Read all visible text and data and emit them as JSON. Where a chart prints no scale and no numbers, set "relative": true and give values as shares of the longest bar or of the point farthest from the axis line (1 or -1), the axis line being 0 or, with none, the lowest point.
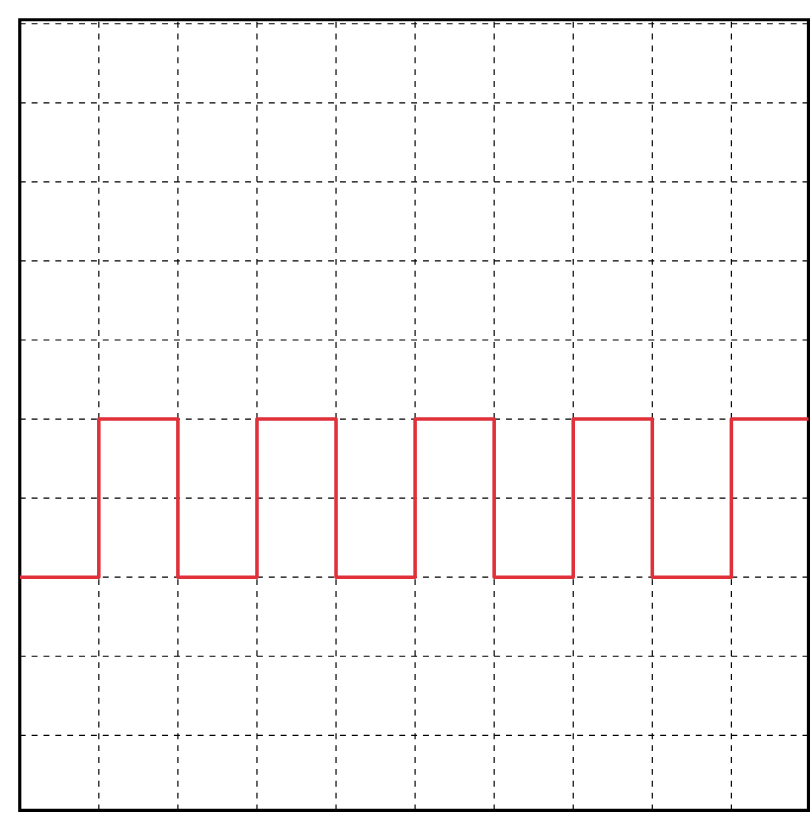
{
  "chart_data": {
    "type": "step",
    "relative": true,
    "categories": [
      null,
      null,
      null,
      null,
      null,
      null,
      null,
      null,
      null,
      null,
      null
    ],
    "series": [
      {
        "color": "#e0303a",
        "values": [
          0,
          1,
          0,
          1,
          0,
          1,
          0,
          1,
          0,
          1,
          1
        ]
      }
    ],
    "grid": true,
    "tick_labels": false,
    "line_style": "solid"
  }
}
